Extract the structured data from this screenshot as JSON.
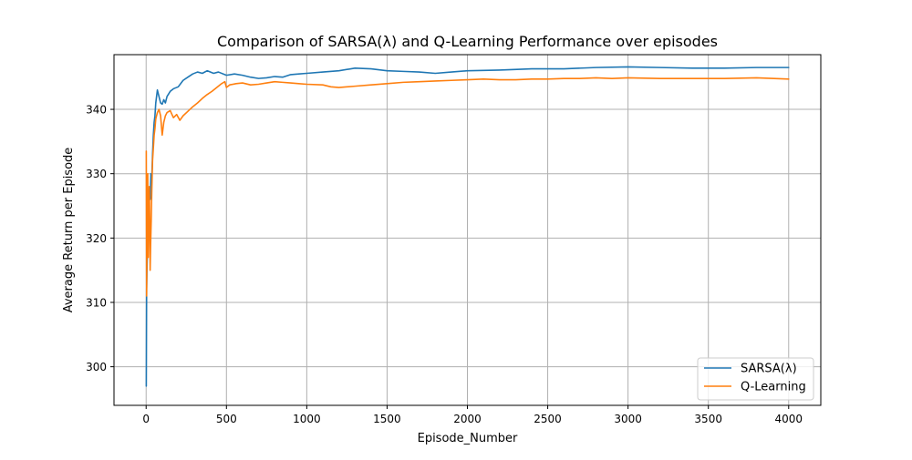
{
  "chart_data": {
    "type": "line",
    "title": "Comparison of SARSA(λ) and Q-Learning Performance over episodes",
    "xlabel": "Episode_Number",
    "ylabel": "Average Return per Episode",
    "xlim": [
      -200,
      4200
    ],
    "ylim": [
      294,
      348.5
    ],
    "xticks": [
      0,
      500,
      1000,
      1500,
      2000,
      2500,
      3000,
      3500,
      4000
    ],
    "yticks": [
      300,
      310,
      320,
      330,
      340
    ],
    "grid": true,
    "legend_position": "bottom-right",
    "series": [
      {
        "name": "SARSA(λ)",
        "color": "#1f77b4",
        "points": [
          [
            1,
            297
          ],
          [
            3,
            312
          ],
          [
            6,
            316
          ],
          [
            10,
            320
          ],
          [
            15,
            324
          ],
          [
            20,
            327
          ],
          [
            25,
            326
          ],
          [
            30,
            330
          ],
          [
            35,
            329
          ],
          [
            40,
            333
          ],
          [
            45,
            336
          ],
          [
            50,
            338
          ],
          [
            55,
            339
          ],
          [
            60,
            341
          ],
          [
            70,
            343
          ],
          [
            80,
            342
          ],
          [
            90,
            341
          ],
          [
            100,
            340.8
          ],
          [
            110,
            341.5
          ],
          [
            120,
            341
          ],
          [
            130,
            342
          ],
          [
            150,
            342.8
          ],
          [
            170,
            343.2
          ],
          [
            200,
            343.5
          ],
          [
            230,
            344.5
          ],
          [
            260,
            345
          ],
          [
            290,
            345.5
          ],
          [
            320,
            345.8
          ],
          [
            350,
            345.6
          ],
          [
            380,
            346
          ],
          [
            420,
            345.6
          ],
          [
            450,
            345.8
          ],
          [
            500,
            345.3
          ],
          [
            550,
            345.5
          ],
          [
            600,
            345.3
          ],
          [
            650,
            345
          ],
          [
            700,
            344.8
          ],
          [
            750,
            344.9
          ],
          [
            800,
            345.1
          ],
          [
            850,
            345
          ],
          [
            900,
            345.4
          ],
          [
            950,
            345.5
          ],
          [
            1000,
            345.6
          ],
          [
            1100,
            345.8
          ],
          [
            1200,
            346
          ],
          [
            1300,
            346.4
          ],
          [
            1400,
            346.3
          ],
          [
            1500,
            346
          ],
          [
            1600,
            345.9
          ],
          [
            1700,
            345.8
          ],
          [
            1800,
            345.6
          ],
          [
            1900,
            345.8
          ],
          [
            2000,
            346
          ],
          [
            2200,
            346.1
          ],
          [
            2400,
            346.3
          ],
          [
            2600,
            346.3
          ],
          [
            2800,
            346.5
          ],
          [
            3000,
            346.6
          ],
          [
            3200,
            346.5
          ],
          [
            3400,
            346.4
          ],
          [
            3600,
            346.4
          ],
          [
            3800,
            346.5
          ],
          [
            4000,
            346.5
          ]
        ]
      },
      {
        "name": "Q-Learning",
        "color": "#ff7f0e",
        "points": [
          [
            1,
            333.5
          ],
          [
            3,
            311
          ],
          [
            5,
            318
          ],
          [
            8,
            323
          ],
          [
            10,
            330
          ],
          [
            13,
            317
          ],
          [
            16,
            322
          ],
          [
            20,
            328
          ],
          [
            23,
            322
          ],
          [
            25,
            315
          ],
          [
            28,
            319
          ],
          [
            32,
            323
          ],
          [
            35,
            327
          ],
          [
            40,
            332
          ],
          [
            45,
            334
          ],
          [
            50,
            336
          ],
          [
            55,
            337
          ],
          [
            60,
            338.5
          ],
          [
            65,
            339
          ],
          [
            70,
            339.5
          ],
          [
            80,
            340
          ],
          [
            90,
            339
          ],
          [
            100,
            336
          ],
          [
            110,
            338
          ],
          [
            120,
            339
          ],
          [
            130,
            339.5
          ],
          [
            150,
            339.8
          ],
          [
            170,
            338.7
          ],
          [
            190,
            339.2
          ],
          [
            210,
            338.3
          ],
          [
            230,
            339
          ],
          [
            260,
            339.7
          ],
          [
            290,
            340.4
          ],
          [
            320,
            341
          ],
          [
            350,
            341.7
          ],
          [
            380,
            342.3
          ],
          [
            410,
            342.8
          ],
          [
            440,
            343.4
          ],
          [
            470,
            344
          ],
          [
            490,
            344.3
          ],
          [
            500,
            343.4
          ],
          [
            520,
            343.8
          ],
          [
            560,
            344
          ],
          [
            600,
            344.1
          ],
          [
            650,
            343.8
          ],
          [
            700,
            343.9
          ],
          [
            750,
            344.1
          ],
          [
            800,
            344.3
          ],
          [
            850,
            344.2
          ],
          [
            900,
            344.1
          ],
          [
            950,
            344
          ],
          [
            1000,
            343.9
          ],
          [
            1100,
            343.8
          ],
          [
            1150,
            343.5
          ],
          [
            1200,
            343.4
          ],
          [
            1300,
            343.6
          ],
          [
            1400,
            343.8
          ],
          [
            1500,
            344
          ],
          [
            1600,
            344.2
          ],
          [
            1700,
            344.3
          ],
          [
            1800,
            344.4
          ],
          [
            1900,
            344.5
          ],
          [
            2000,
            344.6
          ],
          [
            2100,
            344.7
          ],
          [
            2200,
            344.6
          ],
          [
            2300,
            344.6
          ],
          [
            2400,
            344.7
          ],
          [
            2500,
            344.7
          ],
          [
            2600,
            344.8
          ],
          [
            2700,
            344.8
          ],
          [
            2800,
            344.9
          ],
          [
            2900,
            344.8
          ],
          [
            3000,
            344.9
          ],
          [
            3200,
            344.8
          ],
          [
            3400,
            344.8
          ],
          [
            3600,
            344.8
          ],
          [
            3800,
            344.9
          ],
          [
            4000,
            344.7
          ]
        ]
      }
    ]
  }
}
